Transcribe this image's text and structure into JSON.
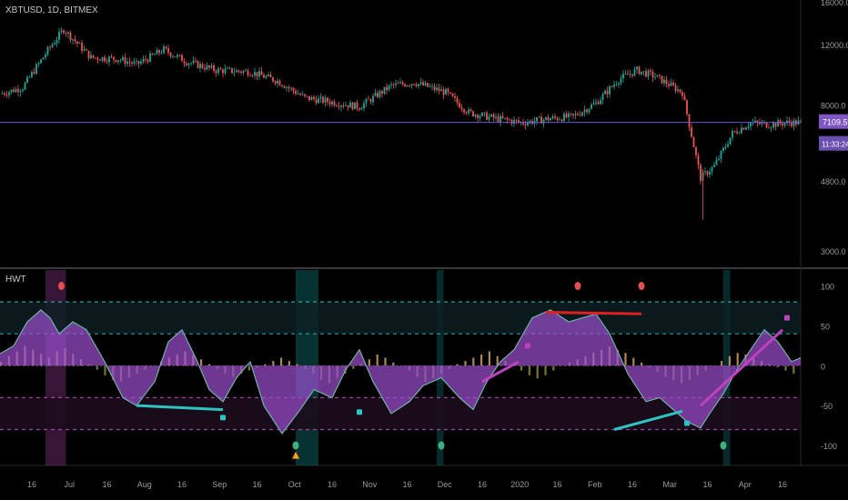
{
  "header": {
    "symbol": "XBTUSD, 1D, BITMEX"
  },
  "indicator": {
    "name": "HWT"
  },
  "chart_data": [
    {
      "type": "candlestick",
      "title": "XBTUSD, 1D, BITMEX",
      "yscale": "log",
      "ylim": [
        2700,
        16200
      ],
      "price_ticks": [
        "16000.0",
        "12000.0",
        "8000.0",
        "4800.0",
        "3000.0"
      ],
      "price_tick_values": [
        16000,
        12000,
        8000,
        4800,
        3000
      ],
      "x_ticks": [
        "16",
        "Jul",
        "16",
        "Aug",
        "16",
        "Sep",
        "16",
        "Oct",
        "16",
        "Nov",
        "16",
        "Dec",
        "16",
        "2020",
        "16",
        "Feb",
        "16",
        "Mar",
        "16",
        "Apr",
        "16"
      ],
      "last_price": "7109.5",
      "countdown": "11:33:24",
      "last_price_value": 7109.5,
      "close_path": [
        [
          0,
          8600
        ],
        [
          10,
          9000
        ],
        [
          22,
          11800
        ],
        [
          28,
          13300
        ],
        [
          40,
          11000
        ],
        [
          52,
          10900
        ],
        [
          60,
          10500
        ],
        [
          72,
          11600
        ],
        [
          82,
          10700
        ],
        [
          95,
          10100
        ],
        [
          110,
          10000
        ],
        [
          122,
          9400
        ],
        [
          134,
          8400
        ],
        [
          146,
          8150
        ],
        [
          158,
          7900
        ],
        [
          172,
          9100
        ],
        [
          182,
          9300
        ],
        [
          196,
          8700
        ],
        [
          206,
          7600
        ],
        [
          218,
          7300
        ],
        [
          230,
          7100
        ],
        [
          242,
          7300
        ],
        [
          252,
          7400
        ],
        [
          262,
          8100
        ],
        [
          272,
          9500
        ],
        [
          280,
          10100
        ],
        [
          288,
          9700
        ],
        [
          300,
          8700
        ],
        [
          308,
          4900
        ],
        [
          314,
          5300
        ],
        [
          322,
          6600
        ],
        [
          330,
          7100
        ],
        [
          338,
          7000
        ],
        [
          346,
          7100
        ],
        [
          351,
          7100
        ]
      ]
    },
    {
      "type": "line",
      "title": "HWT",
      "ylim": [
        -125,
        120
      ],
      "y_ticks": [
        "100",
        "50",
        "0",
        "-50",
        "-100"
      ],
      "y_tick_values": [
        100,
        50,
        0,
        -50,
        -100
      ],
      "levels": [
        80,
        40,
        -40,
        -80
      ],
      "wave_path": [
        [
          0,
          15
        ],
        [
          6,
          25
        ],
        [
          12,
          55
        ],
        [
          18,
          70
        ],
        [
          22,
          60
        ],
        [
          26,
          40
        ],
        [
          32,
          55
        ],
        [
          38,
          45
        ],
        [
          46,
          5
        ],
        [
          54,
          -40
        ],
        [
          60,
          -50
        ],
        [
          68,
          -20
        ],
        [
          74,
          30
        ],
        [
          80,
          45
        ],
        [
          86,
          10
        ],
        [
          92,
          -30
        ],
        [
          98,
          -45
        ],
        [
          104,
          -15
        ],
        [
          110,
          5
        ],
        [
          116,
          -50
        ],
        [
          124,
          -85
        ],
        [
          132,
          -55
        ],
        [
          138,
          -30
        ],
        [
          146,
          -40
        ],
        [
          152,
          -5
        ],
        [
          158,
          20
        ],
        [
          164,
          -20
        ],
        [
          172,
          -60
        ],
        [
          180,
          -45
        ],
        [
          186,
          -25
        ],
        [
          194,
          -15
        ],
        [
          202,
          -40
        ],
        [
          208,
          -55
        ],
        [
          214,
          -20
        ],
        [
          220,
          5
        ],
        [
          226,
          20
        ],
        [
          234,
          60
        ],
        [
          242,
          70
        ],
        [
          250,
          55
        ],
        [
          256,
          60
        ],
        [
          262,
          65
        ],
        [
          268,
          40
        ],
        [
          276,
          -10
        ],
        [
          284,
          -45
        ],
        [
          290,
          -40
        ],
        [
          296,
          -55
        ],
        [
          302,
          -70
        ],
        [
          308,
          -78
        ],
        [
          312,
          -60
        ],
        [
          318,
          -35
        ],
        [
          324,
          -5
        ],
        [
          330,
          20
        ],
        [
          336,
          45
        ],
        [
          342,
          30
        ],
        [
          348,
          5
        ],
        [
          352,
          10
        ]
      ],
      "histogram": [
        5,
        12,
        18,
        25,
        20,
        15,
        10,
        18,
        22,
        15,
        8,
        2,
        -5,
        -12,
        -18,
        -20,
        -15,
        -10,
        -5,
        0,
        5,
        10,
        14,
        18,
        14,
        8,
        2,
        -4,
        -10,
        -14,
        -10,
        -6,
        -2,
        2,
        6,
        10,
        6,
        2,
        -4,
        -10,
        -18,
        -22,
        -16,
        -10,
        -4,
        2,
        8,
        14,
        10,
        4,
        0,
        -6,
        -14,
        -20,
        -16,
        -10,
        -4,
        2,
        6,
        10,
        14,
        18,
        12,
        6,
        0,
        -6,
        -12,
        -16,
        -12,
        -6,
        0,
        4,
        8,
        12,
        16,
        20,
        24,
        20,
        16,
        10,
        4,
        -2,
        -8,
        -14,
        -18,
        -22,
        -18,
        -12,
        -6,
        0,
        6,
        12,
        16,
        14,
        10,
        6,
        2,
        -2,
        -6,
        -10
      ],
      "shaded_spans": [
        {
          "from": 20,
          "to": 29,
          "color": "#7a2e7a"
        },
        {
          "from": 130,
          "to": 140,
          "color": "#0e6e6e"
        },
        {
          "from": 192,
          "to": 195,
          "color": "#0e5a5a"
        },
        {
          "from": 318,
          "to": 321,
          "color": "#0e5a5a"
        }
      ],
      "divergence_lines": [
        {
          "from": [
            60,
            -50
          ],
          "to": [
            98,
            -55
          ],
          "color": "#2ec4c4"
        },
        {
          "from": [
            270,
            -80
          ],
          "to": [
            300,
            -57
          ],
          "color": "#2ec4c4"
        },
        {
          "from": [
            240,
            67
          ],
          "to": [
            282,
            65
          ],
          "color": "#e02020"
        },
        {
          "from": [
            212,
            -20
          ],
          "to": [
            228,
            5
          ],
          "color": "#c040c0"
        },
        {
          "from": [
            308,
            -50
          ],
          "to": [
            344,
            45
          ],
          "color": "#c040c0"
        }
      ],
      "markers": [
        {
          "x": 27,
          "y": 100,
          "color": "#e05050",
          "shape": "circle"
        },
        {
          "x": 254,
          "y": 100,
          "color": "#e05050",
          "shape": "circle"
        },
        {
          "x": 282,
          "y": 100,
          "color": "#e05050",
          "shape": "circle"
        },
        {
          "x": 98,
          "y": -65,
          "color": "#2ec4c4",
          "shape": "square"
        },
        {
          "x": 158,
          "y": -58,
          "color": "#2ec4c4",
          "shape": "square"
        },
        {
          "x": 302,
          "y": -72,
          "color": "#2ec4c4",
          "shape": "square"
        },
        {
          "x": 130,
          "y": -100,
          "color": "#40b080",
          "shape": "circle"
        },
        {
          "x": 194,
          "y": -100,
          "color": "#40b080",
          "shape": "circle"
        },
        {
          "x": 318,
          "y": -100,
          "color": "#40b080",
          "shape": "circle"
        },
        {
          "x": 130,
          "y": -112,
          "color": "#f0a020",
          "shape": "triangle"
        },
        {
          "x": 232,
          "y": 25,
          "color": "#c040c0",
          "shape": "square"
        },
        {
          "x": 346,
          "y": 60,
          "color": "#c040c0",
          "shape": "square"
        }
      ]
    }
  ],
  "colors": {
    "up": "#26a69a",
    "down": "#ef5350",
    "wave": "#9c4fd0",
    "hist_up": "#c9a060",
    "hist_down": "#8a8a3a",
    "price_line": "#6a5acd",
    "grid": "#1c1c1c"
  }
}
